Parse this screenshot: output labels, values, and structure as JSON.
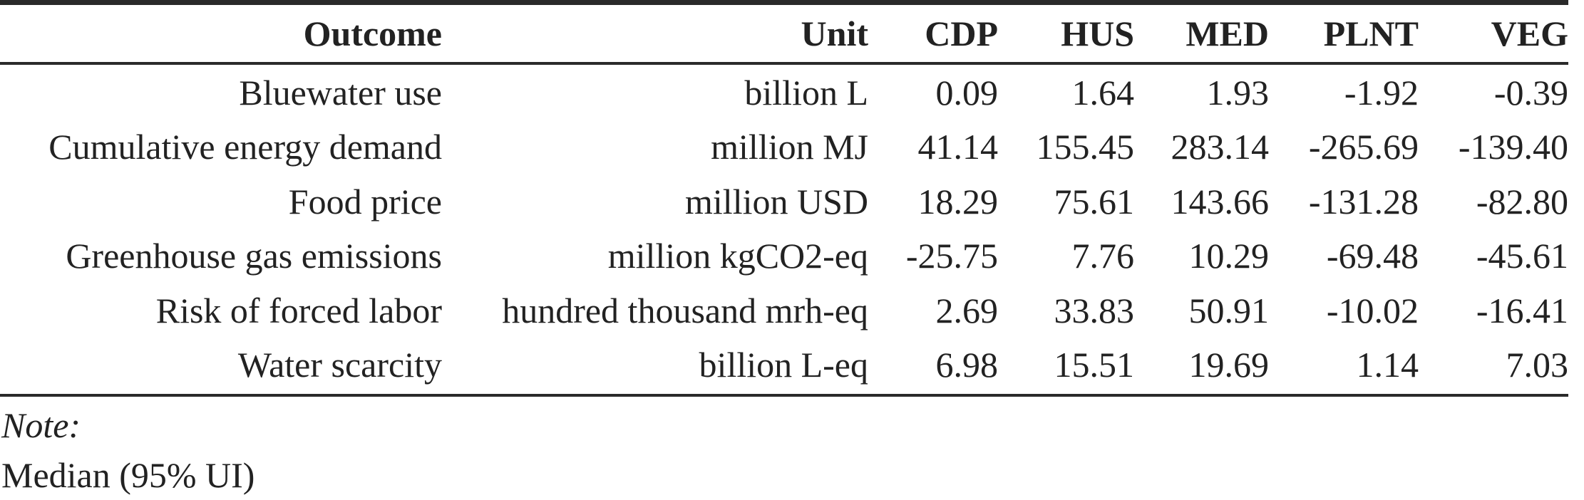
{
  "table": {
    "columns": [
      "Outcome",
      "Unit",
      "CDP",
      "HUS",
      "MED",
      "PLNT",
      "VEG"
    ],
    "rows": [
      {
        "outcome": "Bluewater use",
        "unit": "billion L",
        "cdp": "0.09",
        "hus": "1.64",
        "med": "1.93",
        "plnt": "-1.92",
        "veg": "-0.39"
      },
      {
        "outcome": "Cumulative energy demand",
        "unit": "million MJ",
        "cdp": "41.14",
        "hus": "155.45",
        "med": "283.14",
        "plnt": "-265.69",
        "veg": "-139.40"
      },
      {
        "outcome": "Food price",
        "unit": "million USD",
        "cdp": "18.29",
        "hus": "75.61",
        "med": "143.66",
        "plnt": "-131.28",
        "veg": "-82.80"
      },
      {
        "outcome": "Greenhouse gas emissions",
        "unit": "million kgCO2-eq",
        "cdp": "-25.75",
        "hus": "7.76",
        "med": "10.29",
        "plnt": "-69.48",
        "veg": "-45.61"
      },
      {
        "outcome": "Risk of forced labor",
        "unit": "hundred thousand mrh-eq",
        "cdp": "2.69",
        "hus": "33.83",
        "med": "50.91",
        "plnt": "-10.02",
        "veg": "-16.41"
      },
      {
        "outcome": "Water scarcity",
        "unit": "billion L-eq",
        "cdp": "6.98",
        "hus": "15.51",
        "med": "19.69",
        "plnt": "1.14",
        "veg": "7.03"
      }
    ]
  },
  "note": {
    "label": "Note:",
    "text": "Median (95% UI)"
  }
}
